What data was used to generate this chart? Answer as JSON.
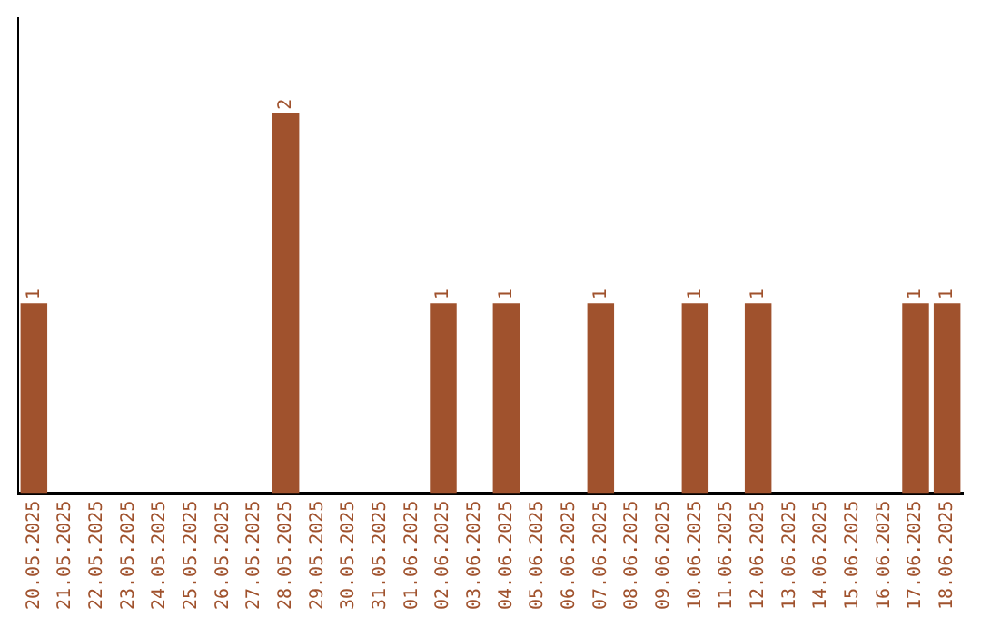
{
  "chart_data": {
    "type": "bar",
    "categories": [
      "20.05.2025",
      "21.05.2025",
      "22.05.2025",
      "23.05.2025",
      "24.05.2025",
      "25.05.2025",
      "26.05.2025",
      "27.05.2025",
      "28.05.2025",
      "29.05.2025",
      "30.05.2025",
      "31.05.2025",
      "01.06.2025",
      "02.06.2025",
      "03.06.2025",
      "04.06.2025",
      "05.06.2025",
      "06.06.2025",
      "07.06.2025",
      "08.06.2025",
      "09.06.2025",
      "10.06.2025",
      "11.06.2025",
      "12.06.2025",
      "13.06.2025",
      "14.06.2025",
      "15.06.2025",
      "16.06.2025",
      "17.06.2025",
      "18.06.2025"
    ],
    "values": [
      1,
      0,
      0,
      0,
      0,
      0,
      0,
      0,
      2,
      0,
      0,
      0,
      0,
      1,
      0,
      1,
      0,
      0,
      1,
      0,
      0,
      1,
      0,
      1,
      0,
      0,
      0,
      0,
      1,
      1
    ],
    "value_labels": [
      "1",
      null,
      null,
      null,
      null,
      null,
      null,
      null,
      "2",
      null,
      null,
      null,
      null,
      "1",
      null,
      "1",
      null,
      null,
      "1",
      null,
      null,
      "1",
      null,
      "1",
      null,
      null,
      null,
      null,
      "1",
      "1"
    ],
    "color": "#a0522d",
    "grid": false,
    "legend": false,
    "tick_labels": "x"
  }
}
